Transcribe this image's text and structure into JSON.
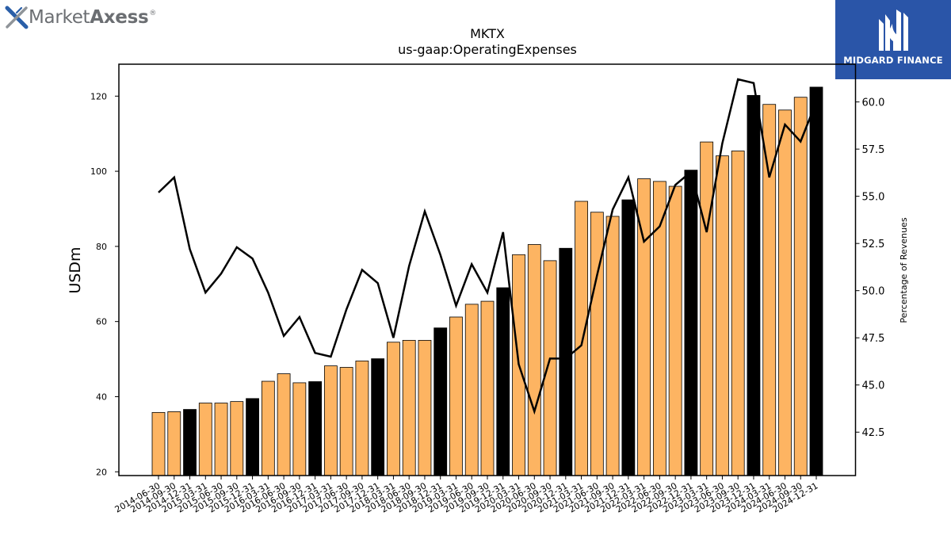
{
  "logos": {
    "left_brand_regular": "Market",
    "left_brand_bold": "Axess",
    "left_brand_mark": "®",
    "right_brand": "MIDGARD FINANCE"
  },
  "chart_data": {
    "type": "bar",
    "title": "MKTX",
    "subtitle": "us-gaap:OperatingExpenses",
    "ylabel": "USDm",
    "y2label": "Percentage of Revenues",
    "ylim": [
      19,
      128.5
    ],
    "y2lim": [
      40.2,
      62.0
    ],
    "yticks": [
      20,
      40,
      60,
      80,
      100,
      120
    ],
    "y2ticks": [
      "42.5",
      "45.0",
      "47.5",
      "50.0",
      "52.5",
      "55.0",
      "57.5",
      "60.0"
    ],
    "categories": [
      "2014-06-30",
      "2014-09-30",
      "2014-12-31",
      "2015-03-31",
      "2015-06-30",
      "2015-09-30",
      "2015-12-31",
      "2016-03-31",
      "2016-06-30",
      "2016-09-30",
      "2016-12-31",
      "2017-03-31",
      "2017-06-30",
      "2017-09-30",
      "2017-12-31",
      "2018-03-31",
      "2018-06-30",
      "2018-09-30",
      "2018-12-31",
      "2019-03-31",
      "2019-06-30",
      "2019-09-30",
      "2019-12-31",
      "2020-03-31",
      "2020-06-30",
      "2020-09-30",
      "2020-12-31",
      "2021-03-31",
      "2021-06-30",
      "2021-09-30",
      "2021-12-31",
      "2022-03-31",
      "2022-06-30",
      "2022-09-30",
      "2022-12-31",
      "2023-03-31",
      "2023-06-30",
      "2023-09-30",
      "2023-12-31",
      "2024-03-31",
      "2024-06-30",
      "2024-09-30",
      "2024-12-31"
    ],
    "series": [
      {
        "kind": "bar",
        "values": [
          35.8,
          36.0,
          36.6,
          38.3,
          38.3,
          38.7,
          39.5,
          44.1,
          46.1,
          43.7,
          44.0,
          48.2,
          47.8,
          49.5,
          50.1,
          54.5,
          55.0,
          55.0,
          58.3,
          61.2,
          64.6,
          65.4,
          69.0,
          77.8,
          80.5,
          76.2,
          79.5,
          92.0,
          89.1,
          88.0,
          92.4,
          98.0,
          97.3,
          96.0,
          100.3,
          107.8,
          104.1,
          105.4,
          120.2,
          117.8,
          116.3,
          119.7,
          122.4
        ],
        "colors": [
          "#fdb462",
          "#fdb462",
          "#000000",
          "#fdb462",
          "#fdb462",
          "#fdb462",
          "#000000",
          "#fdb462",
          "#fdb462",
          "#fdb462",
          "#000000",
          "#fdb462",
          "#fdb462",
          "#fdb462",
          "#000000",
          "#fdb462",
          "#fdb462",
          "#fdb462",
          "#000000",
          "#fdb462",
          "#fdb462",
          "#fdb462",
          "#000000",
          "#fdb462",
          "#fdb462",
          "#fdb462",
          "#000000",
          "#fdb462",
          "#fdb462",
          "#fdb462",
          "#000000",
          "#fdb462",
          "#fdb462",
          "#fdb462",
          "#000000",
          "#fdb462",
          "#fdb462",
          "#fdb462",
          "#000000",
          "#fdb462",
          "#fdb462",
          "#fdb462",
          "#000000"
        ]
      },
      {
        "kind": "line",
        "axis": "right",
        "color": "#000000",
        "values": [
          55.2,
          56.0,
          52.2,
          49.9,
          50.9,
          52.3,
          51.7,
          49.9,
          47.6,
          48.6,
          46.7,
          46.5,
          49.0,
          51.1,
          50.4,
          47.5,
          51.3,
          54.2,
          51.9,
          49.2,
          51.4,
          49.9,
          53.1,
          46.1,
          43.6,
          46.4,
          46.4,
          47.1,
          50.8,
          54.3,
          56.0,
          52.6,
          53.4,
          55.6,
          56.3,
          53.1,
          57.8,
          61.2,
          61.0,
          56.0,
          58.8,
          57.9,
          60.0
        ]
      }
    ]
  }
}
